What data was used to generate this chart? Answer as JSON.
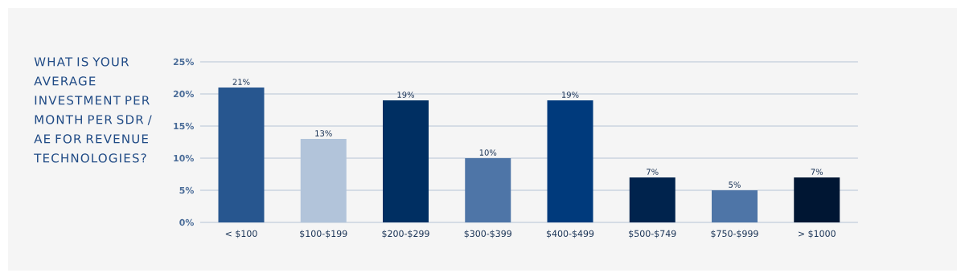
{
  "chart_data": {
    "type": "bar",
    "title": "WHAT IS YOUR AVERAGE INVESTMENT PER MONTH PER SDR / AE FOR REVENUE TECHNOLOGIES?",
    "categories": [
      "< $100",
      "$100-$199",
      "$200-$299",
      "$300-$399",
      "$400-$499",
      "$500-$749",
      "$750-$999",
      "> $1000"
    ],
    "values": [
      21,
      13,
      19,
      10,
      19,
      7,
      5,
      7
    ],
    "value_labels": [
      "21%",
      "13%",
      "19%",
      "10%",
      "19%",
      "7%",
      "5%",
      "7%"
    ],
    "colors": [
      "#27568f",
      "#b2c4da",
      "#002f62",
      "#4e75a7",
      "#003a7c",
      "#00234d",
      "#4e75a7",
      "#001633"
    ],
    "ylim": [
      0,
      25
    ],
    "yticks": [
      {
        "value": 0,
        "label": "0%"
      },
      {
        "value": 5,
        "label": "5%"
      },
      {
        "value": 10,
        "label": "10%"
      },
      {
        "value": 15,
        "label": "15%"
      },
      {
        "value": 20,
        "label": "20%"
      },
      {
        "value": 25,
        "label": "25%"
      }
    ],
    "grid": "y"
  }
}
